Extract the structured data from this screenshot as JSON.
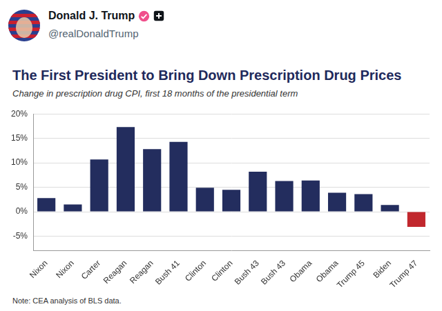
{
  "post": {
    "author": "Donald J. Trump",
    "handle": "@realDonaldTrump"
  },
  "chart_data": {
    "type": "bar",
    "title": "The First President to Bring Down Prescription Drug Prices",
    "subtitle": "Change in prescription drug CPI, first 18 months of the presidential term",
    "note": "Note: CEA analysis of BLS data.",
    "categories": [
      "Nixon",
      "Nixon",
      "Carter",
      "Reagan",
      "Reagan",
      "Bush 41",
      "Clinton",
      "Clinton",
      "Bush 43",
      "Bush 43",
      "Obama",
      "Obama",
      "Trump 45",
      "Biden",
      "Trump 47"
    ],
    "values": [
      2.8,
      1.5,
      10.7,
      17.3,
      12.8,
      14.3,
      4.9,
      4.5,
      8.2,
      6.3,
      6.4,
      3.9,
      3.6,
      1.4,
      -3.1
    ],
    "colors": [
      "#232d5e",
      "#232d5e",
      "#232d5e",
      "#232d5e",
      "#232d5e",
      "#232d5e",
      "#232d5e",
      "#232d5e",
      "#232d5e",
      "#232d5e",
      "#232d5e",
      "#232d5e",
      "#232d5e",
      "#232d5e",
      "#c1272d"
    ],
    "ylim": [
      -8,
      20
    ],
    "yticks": [
      {
        "value": -5,
        "label": "-5%"
      },
      {
        "value": 0,
        "label": "0%"
      },
      {
        "value": 5,
        "label": "5%"
      },
      {
        "value": 10,
        "label": "10%"
      },
      {
        "value": 15,
        "label": "15%"
      },
      {
        "value": 20,
        "label": "20%"
      }
    ],
    "grid": true
  }
}
